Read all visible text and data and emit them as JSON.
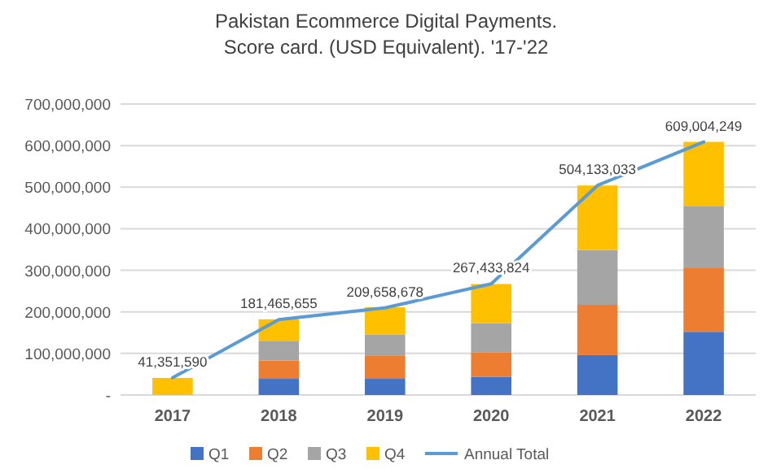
{
  "chart_data": {
    "type": "bar",
    "title": "Pakistan Ecommerce Digital Payments.",
    "subtitle": "Score card. (USD Equivalent). '17-'22",
    "categories": [
      "2017",
      "2018",
      "2019",
      "2020",
      "2021",
      "2022"
    ],
    "stacked": true,
    "series": [
      {
        "name": "Q1",
        "color": "#4472c4",
        "values": [
          null,
          39000000,
          39000000,
          44000000,
          96000000,
          152000000
        ]
      },
      {
        "name": "Q2",
        "color": "#ed7d31",
        "values": [
          null,
          44000000,
          55000000,
          58000000,
          121000000,
          153000000
        ]
      },
      {
        "name": "Q3",
        "color": "#a5a5a5",
        "values": [
          null,
          46000000,
          51000000,
          71000000,
          132000000,
          150000000
        ]
      },
      {
        "name": "Q4",
        "color": "#ffc000",
        "values": [
          41000000,
          53000000,
          66000000,
          94000000,
          155000000,
          154000000
        ]
      },
      {
        "name": "Annual Total",
        "type": "line",
        "color": "#5b9bd5",
        "values": [
          41351590,
          181465655,
          209658678,
          267433824,
          504133033,
          609004249
        ],
        "value_labels": [
          "41,351,590",
          "181,465,655",
          "209,658,678",
          "267,433,824",
          "504,133,033",
          "609,004,249"
        ]
      }
    ],
    "ylim": [
      0,
      700000000
    ],
    "yticks": [
      {
        "value": 0,
        "label": "-"
      },
      {
        "value": 100000000,
        "label": "100,000,000"
      },
      {
        "value": 200000000,
        "label": "200,000,000"
      },
      {
        "value": 300000000,
        "label": "300,000,000"
      },
      {
        "value": 400000000,
        "label": "400,000,000"
      },
      {
        "value": 500000000,
        "label": "500,000,000"
      },
      {
        "value": 600000000,
        "label": "600,000,000"
      },
      {
        "value": 700000000,
        "label": "700,000,000"
      }
    ],
    "grid": "y",
    "legend": "bottom",
    "marker": "none",
    "line_style": "solid"
  }
}
